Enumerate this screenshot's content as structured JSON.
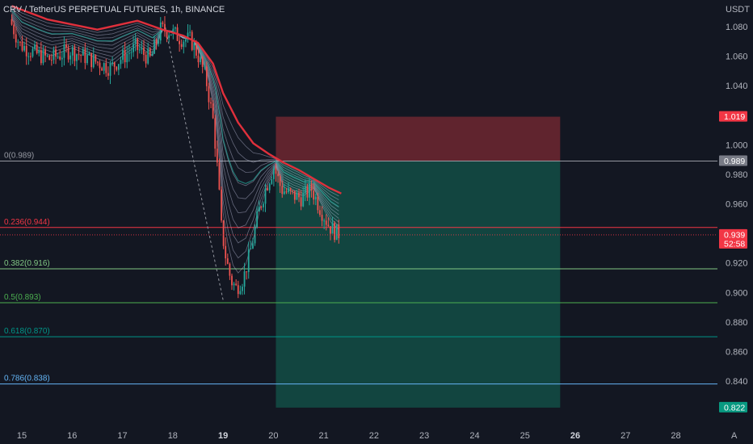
{
  "header": {
    "title": "CRV / TetherUS PERPETUAL FUTURES, 1h, BINANCE",
    "currency": "USDT",
    "auto_scale_label": "A"
  },
  "colors": {
    "background": "#131722",
    "bull": "#26a69a",
    "bear": "#ef5350",
    "ema_thick": "#e0303c",
    "risk_zone": "#7b2a33",
    "reward_zone": "#134d45",
    "fib_0": "#9598a1",
    "fib_236": "#f23645",
    "fib_382": "#81c784",
    "fib_5": "#4caf50",
    "fib_618": "#009688",
    "fib_786": "#64b5f6"
  },
  "chart_data": {
    "type": "candlestick",
    "ylim": [
      0.817,
      1.096
    ],
    "y_ticks": [
      1.08,
      1.06,
      1.04,
      1.0,
      0.98,
      0.96,
      0.92,
      0.9,
      0.88,
      0.86,
      0.84
    ],
    "x_ticks": [
      {
        "label": "15",
        "day": 15
      },
      {
        "label": "16",
        "day": 16
      },
      {
        "label": "17",
        "day": 17
      },
      {
        "label": "18",
        "day": 18
      },
      {
        "label": "19",
        "day": 19,
        "bold": true
      },
      {
        "label": "20",
        "day": 20
      },
      {
        "label": "21",
        "day": 21
      },
      {
        "label": "22",
        "day": 22
      },
      {
        "label": "23",
        "day": 23
      },
      {
        "label": "24",
        "day": 24
      },
      {
        "label": "25",
        "day": 25
      },
      {
        "label": "26",
        "day": 26,
        "bold": true
      },
      {
        "label": "27",
        "day": 27
      },
      {
        "label": "28",
        "day": 28
      }
    ],
    "xlim_days": [
      14.77,
      29.1
    ],
    "price_path": [
      [
        14.8,
        1.085
      ],
      [
        15.0,
        1.068
      ],
      [
        15.3,
        1.062
      ],
      [
        15.6,
        1.058
      ],
      [
        16.0,
        1.064
      ],
      [
        16.4,
        1.058
      ],
      [
        16.8,
        1.052
      ],
      [
        17.0,
        1.058
      ],
      [
        17.3,
        1.066
      ],
      [
        17.6,
        1.058
      ],
      [
        17.8,
        1.078
      ],
      [
        18.0,
        1.077
      ],
      [
        18.2,
        1.072
      ],
      [
        18.4,
        1.071
      ],
      [
        18.55,
        1.06
      ],
      [
        18.7,
        1.045
      ],
      [
        18.85,
        1.015
      ],
      [
        18.95,
        0.975
      ],
      [
        19.0,
        0.946
      ],
      [
        19.1,
        0.923
      ],
      [
        19.2,
        0.908
      ],
      [
        19.3,
        0.903
      ],
      [
        19.45,
        0.91
      ],
      [
        19.6,
        0.93
      ],
      [
        19.75,
        0.955
      ],
      [
        19.9,
        0.972
      ],
      [
        20.05,
        0.985
      ],
      [
        20.2,
        0.97
      ],
      [
        20.4,
        0.966
      ],
      [
        20.6,
        0.964
      ],
      [
        20.8,
        0.97
      ],
      [
        21.0,
        0.955
      ],
      [
        21.15,
        0.945
      ],
      [
        21.3,
        0.94
      ]
    ],
    "series": [
      {
        "name": "",
        "type": "ema",
        "style": "thick",
        "points": [
          [
            14.8,
            1.094
          ],
          [
            15.5,
            1.085
          ],
          [
            16.5,
            1.078
          ],
          [
            17.3,
            1.084
          ],
          [
            17.8,
            1.078
          ],
          [
            18.2,
            1.074
          ],
          [
            18.5,
            1.069
          ],
          [
            18.8,
            1.055
          ],
          [
            19.0,
            1.035
          ],
          [
            19.3,
            1.015
          ],
          [
            19.6,
            1.001
          ],
          [
            19.9,
            0.994
          ],
          [
            20.2,
            0.988
          ],
          [
            20.5,
            0.983
          ],
          [
            20.8,
            0.977
          ],
          [
            21.1,
            0.971
          ],
          [
            21.35,
            0.967
          ]
        ]
      }
    ],
    "ribbon_count": 10,
    "fib_dashed_line": {
      "from": [
        19.0,
        0.895
      ],
      "to": [
        17.85,
        1.08
      ]
    },
    "position": {
      "x_start_day": 20.05,
      "x_end_day": 25.7,
      "entry": 0.989,
      "stop": 1.019,
      "target": 0.822
    },
    "fib_levels": [
      {
        "label": "0(0.989)",
        "value": 0.989,
        "color_key": "fib_0"
      },
      {
        "label": "0.236(0.944)",
        "value": 0.944,
        "color_key": "fib_236"
      },
      {
        "label": "0.382(0.916)",
        "value": 0.916,
        "color_key": "fib_382"
      },
      {
        "label": "0.5(0.893)",
        "value": 0.893,
        "color_key": "fib_5"
      },
      {
        "label": "0.618(0.870)",
        "value": 0.87,
        "color_key": "fib_618"
      },
      {
        "label": "0.786(0.838)",
        "value": 0.838,
        "color_key": "fib_786"
      }
    ],
    "price_badges": [
      {
        "label": "1.019",
        "value": 1.019,
        "color": "#f23645"
      },
      {
        "label": "0.989",
        "value": 0.989,
        "color": "#787b86"
      },
      {
        "label": "0.939",
        "value": 0.939,
        "color": "#f23645",
        "sub": "52:58"
      },
      {
        "label": "0.822",
        "value": 0.822,
        "color": "#089981"
      }
    ],
    "current_price": 0.939
  }
}
